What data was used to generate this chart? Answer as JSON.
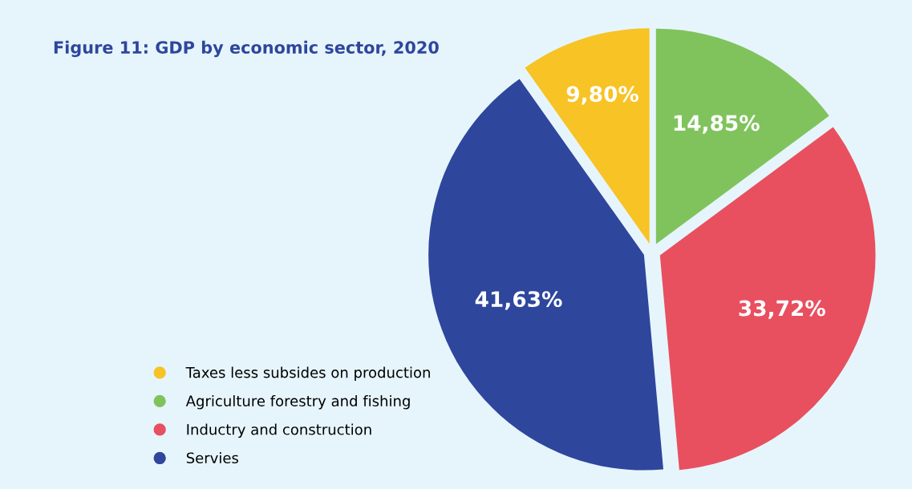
{
  "chart_data": {
    "type": "pie",
    "title": "Figure 11: GDP by economic sector, 2020",
    "categories": [
      "Taxes less subsides on production",
      "Agriculture forestry and fishing",
      "Inductry and construction",
      "Servies"
    ],
    "values": [
      9.8,
      14.85,
      33.72,
      41.63
    ],
    "value_labels": [
      "9,80%",
      "14,85%",
      "33,72%",
      "41,63%"
    ],
    "colors": [
      "#f7c325",
      "#80c35d",
      "#e8505f",
      "#2e469c"
    ],
    "legend": "bottom left"
  }
}
